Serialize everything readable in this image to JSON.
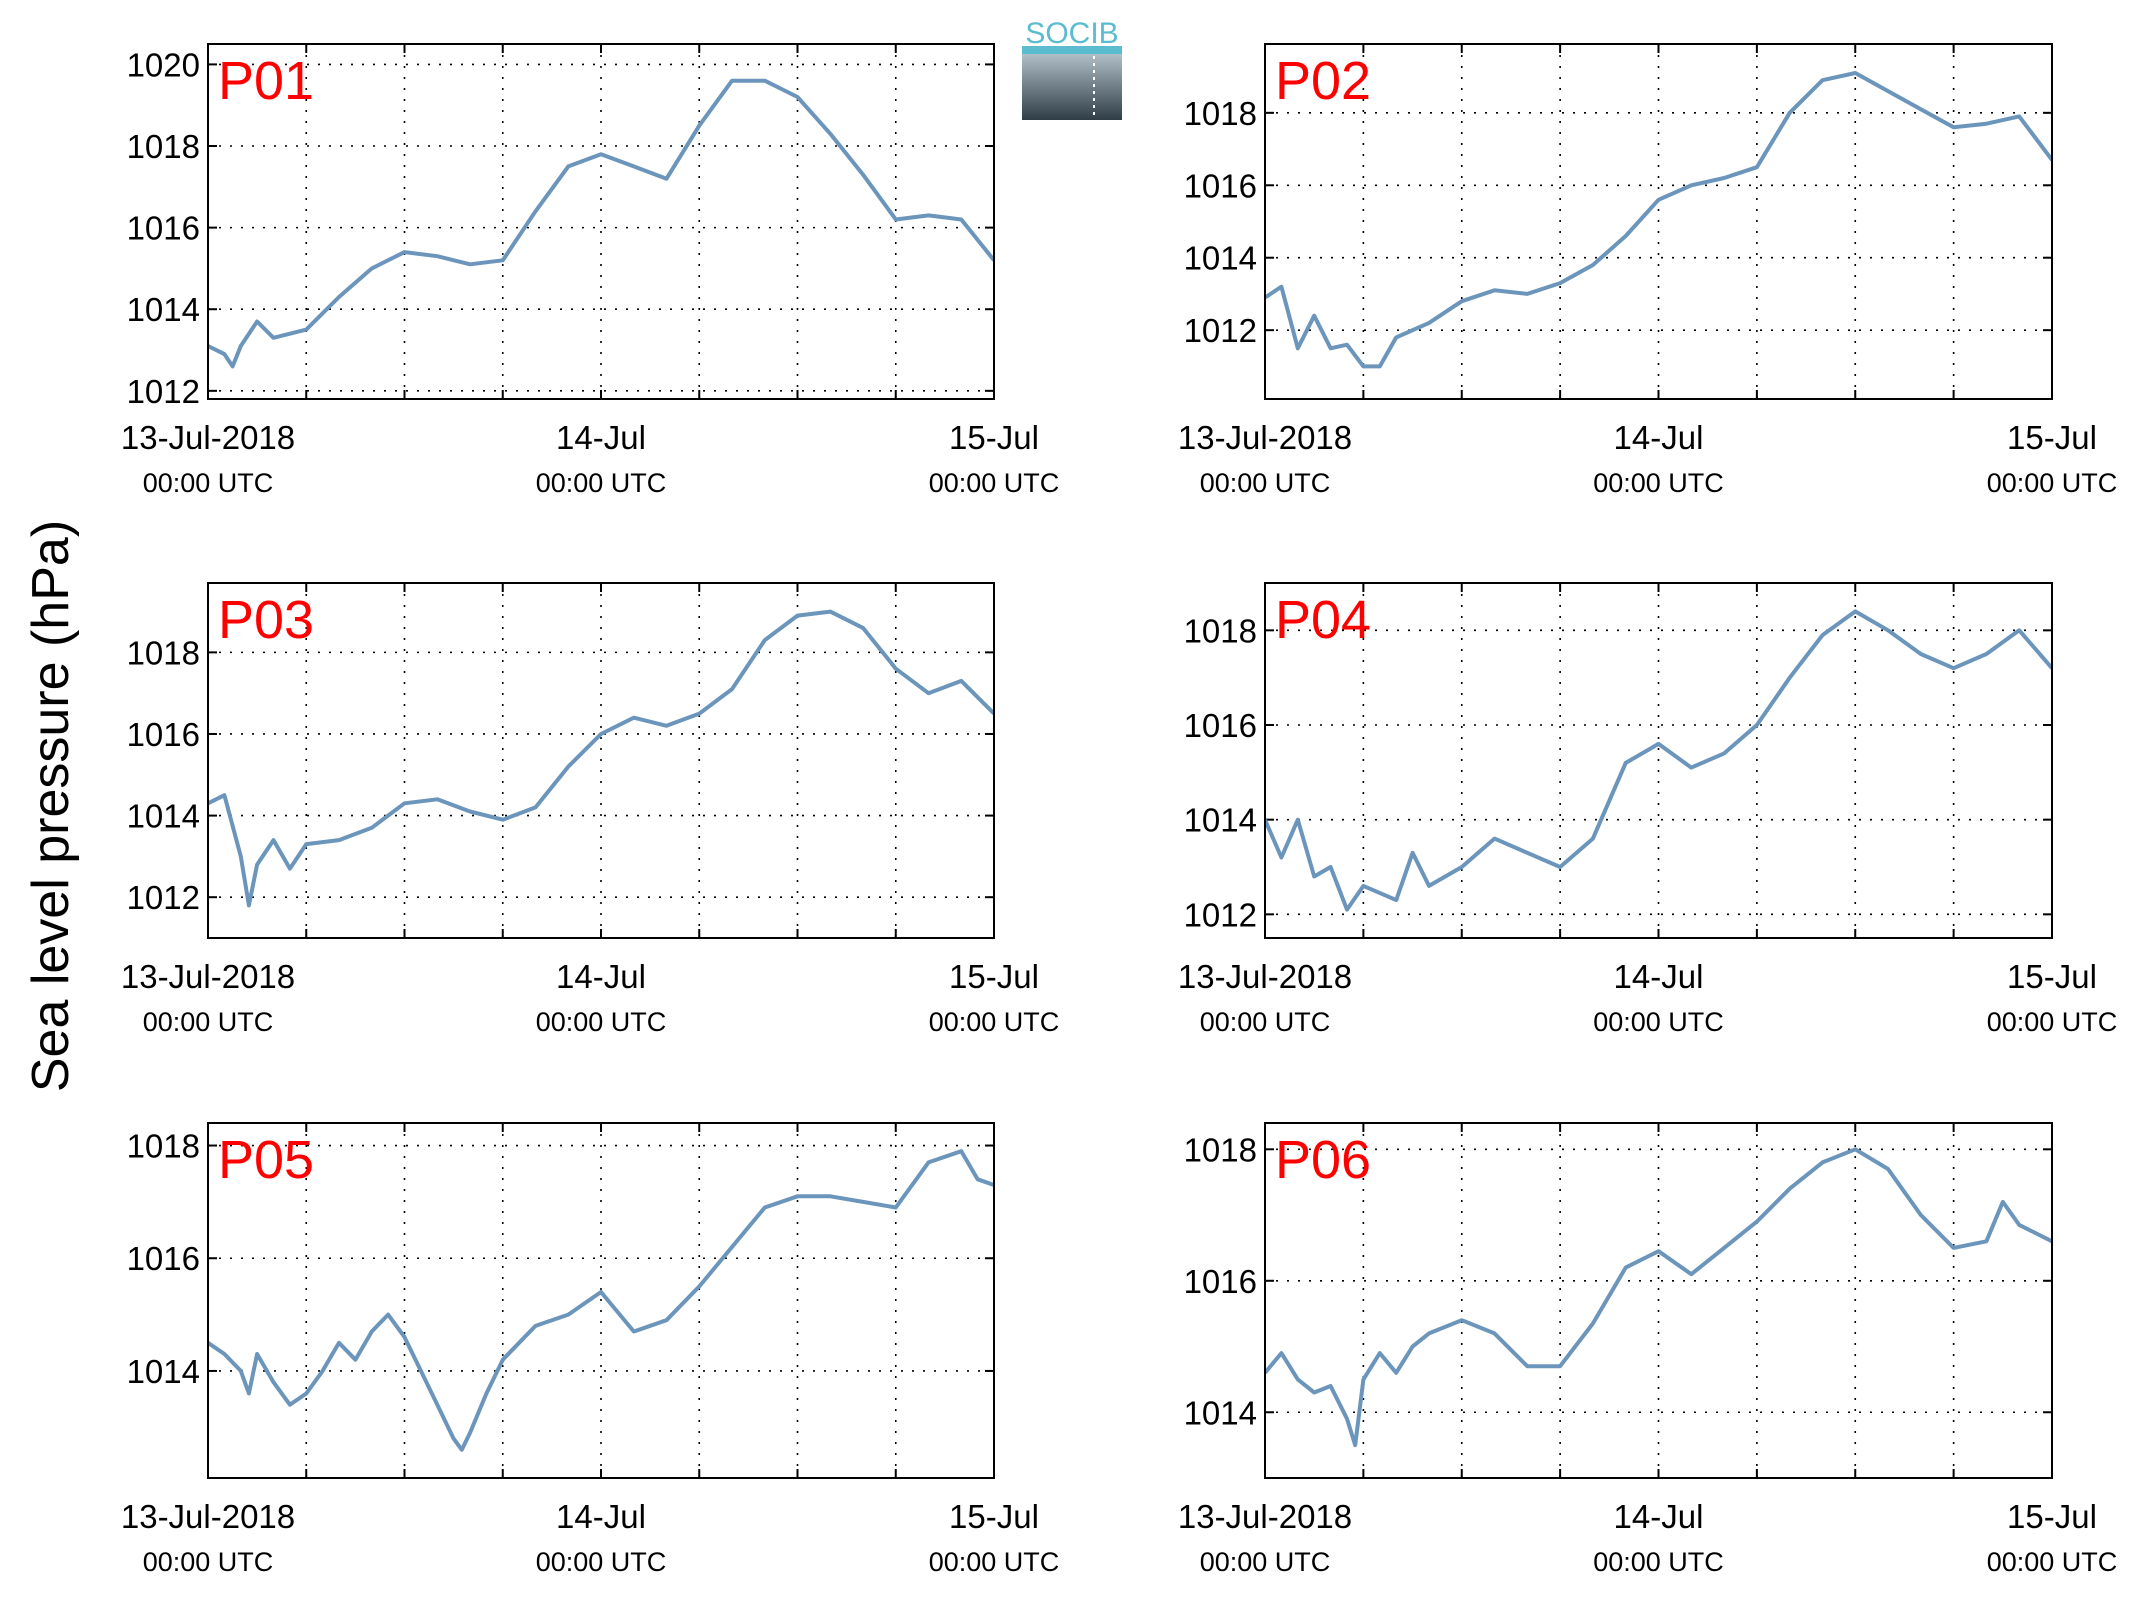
{
  "ylabel": "Sea level pressure (hPa)",
  "logo": "SOCIB",
  "chart_data": [
    {
      "type": "line",
      "title": "P01",
      "color": "#6b95bb",
      "grid": true,
      "x": [
        0,
        1,
        1.5,
        2,
        3,
        4,
        5,
        6,
        8,
        10,
        12,
        14,
        16,
        18,
        20,
        22,
        24,
        26,
        28,
        30,
        32,
        34,
        36,
        38,
        40,
        42,
        44,
        46,
        48
      ],
      "values": [
        1013.1,
        1012.9,
        1012.6,
        1013.1,
        1013.7,
        1013.3,
        1013.4,
        1013.5,
        1014.3,
        1015.0,
        1015.4,
        1015.3,
        1015.1,
        1015.2,
        1016.4,
        1017.5,
        1017.8,
        1017.5,
        1017.2,
        1018.5,
        1019.6,
        1019.6,
        1019.2,
        1018.3,
        1017.3,
        1016.2,
        1016.3,
        1016.2,
        1015.2
      ],
      "xlim": [
        0,
        48
      ],
      "xticks": [
        {
          "value": 0,
          "label": [
            "13-Jul-2018",
            "00:00 UTC"
          ]
        },
        {
          "value": 24,
          "label": [
            "14-Jul",
            "00:00 UTC"
          ]
        },
        {
          "value": 48,
          "label": [
            "15-Jul",
            "00:00 UTC"
          ]
        }
      ],
      "xminor": [
        6,
        12,
        18,
        30,
        36,
        42
      ],
      "ylim": [
        1011.8,
        1020.5
      ],
      "yticks": [
        1012,
        1014,
        1016,
        1018,
        1020
      ]
    },
    {
      "type": "line",
      "title": "P02",
      "color": "#6b95bb",
      "grid": true,
      "x": [
        0,
        1,
        2,
        3,
        4,
        5,
        6,
        7,
        8,
        10,
        12,
        14,
        16,
        18,
        20,
        22,
        24,
        26,
        28,
        30,
        32,
        34,
        36,
        38,
        40,
        42,
        44,
        46,
        48
      ],
      "values": [
        1012.9,
        1013.2,
        1011.5,
        1012.4,
        1011.5,
        1011.6,
        1011.0,
        1011.0,
        1011.8,
        1012.2,
        1012.8,
        1013.1,
        1013.0,
        1013.3,
        1013.8,
        1014.6,
        1015.6,
        1016.0,
        1016.2,
        1016.5,
        1018.0,
        1018.9,
        1019.1,
        1018.6,
        1018.1,
        1017.6,
        1017.7,
        1017.9,
        1016.7
      ],
      "xlim": [
        0,
        48
      ],
      "xticks": [
        {
          "value": 0,
          "label": [
            "13-Jul-2018",
            "00:00 UTC"
          ]
        },
        {
          "value": 24,
          "label": [
            "14-Jul",
            "00:00 UTC"
          ]
        },
        {
          "value": 48,
          "label": [
            "15-Jul",
            "00:00 UTC"
          ]
        }
      ],
      "xminor": [
        6,
        12,
        18,
        30,
        36,
        42
      ],
      "ylim": [
        1010.1,
        1019.9
      ],
      "yticks": [
        1012,
        1014,
        1016,
        1018
      ]
    },
    {
      "type": "line",
      "title": "P03",
      "color": "#6b95bb",
      "grid": true,
      "x": [
        0,
        1,
        2,
        2.5,
        3,
        4,
        5,
        6,
        8,
        10,
        12,
        14,
        16,
        18,
        20,
        22,
        24,
        26,
        28,
        30,
        32,
        34,
        36,
        38,
        40,
        42,
        44,
        46,
        48
      ],
      "values": [
        1014.3,
        1014.5,
        1013.0,
        1011.8,
        1012.8,
        1013.4,
        1012.7,
        1013.3,
        1013.4,
        1013.7,
        1014.3,
        1014.4,
        1014.1,
        1013.9,
        1014.2,
        1015.2,
        1016.0,
        1016.4,
        1016.2,
        1016.5,
        1017.1,
        1018.3,
        1018.9,
        1019.0,
        1018.6,
        1017.6,
        1017.0,
        1017.3,
        1016.5
      ],
      "xlim": [
        0,
        48
      ],
      "xticks": [
        {
          "value": 0,
          "label": [
            "13-Jul-2018",
            "00:00 UTC"
          ]
        },
        {
          "value": 24,
          "label": [
            "14-Jul",
            "00:00 UTC"
          ]
        },
        {
          "value": 48,
          "label": [
            "15-Jul",
            "00:00 UTC"
          ]
        }
      ],
      "xminor": [
        6,
        12,
        18,
        30,
        36,
        42
      ],
      "ylim": [
        1011.0,
        1019.7
      ],
      "yticks": [
        1012,
        1014,
        1016,
        1018
      ]
    },
    {
      "type": "line",
      "title": "P04",
      "color": "#6b95bb",
      "grid": true,
      "x": [
        0,
        1,
        2,
        3,
        4,
        5,
        6,
        8,
        9,
        10,
        12,
        14,
        16,
        18,
        20,
        22,
        24,
        26,
        28,
        30,
        32,
        34,
        36,
        38,
        40,
        42,
        44,
        46,
        48
      ],
      "values": [
        1014.0,
        1013.2,
        1014.0,
        1012.8,
        1013.0,
        1012.1,
        1012.6,
        1012.3,
        1013.3,
        1012.6,
        1013.0,
        1013.6,
        1013.3,
        1013.0,
        1013.6,
        1015.2,
        1015.6,
        1015.1,
        1015.4,
        1016.0,
        1017.0,
        1017.9,
        1018.4,
        1018.0,
        1017.5,
        1017.2,
        1017.5,
        1018.0,
        1017.2
      ],
      "xlim": [
        0,
        48
      ],
      "xticks": [
        {
          "value": 0,
          "label": [
            "13-Jul-2018",
            "00:00 UTC"
          ]
        },
        {
          "value": 24,
          "label": [
            "14-Jul",
            "00:00 UTC"
          ]
        },
        {
          "value": 48,
          "label": [
            "15-Jul",
            "00:00 UTC"
          ]
        }
      ],
      "xminor": [
        6,
        12,
        18,
        30,
        36,
        42
      ],
      "ylim": [
        1011.5,
        1019.0
      ],
      "yticks": [
        1012,
        1014,
        1016,
        1018
      ]
    },
    {
      "type": "line",
      "title": "P05",
      "color": "#6b95bb",
      "grid": true,
      "x": [
        0,
        1,
        2,
        2.5,
        3,
        4,
        5,
        6,
        7,
        8,
        9,
        10,
        11,
        12,
        13,
        14,
        15,
        15.5,
        16,
        17,
        18,
        19,
        20,
        22,
        24,
        26,
        28,
        30,
        32,
        34,
        36,
        38,
        40,
        42,
        44,
        46,
        47,
        48
      ],
      "values": [
        1014.5,
        1014.3,
        1014.0,
        1013.6,
        1014.3,
        1013.8,
        1013.4,
        1013.6,
        1014.0,
        1014.5,
        1014.2,
        1014.7,
        1015.0,
        1014.6,
        1014.0,
        1013.4,
        1012.8,
        1012.6,
        1012.9,
        1013.6,
        1014.2,
        1014.5,
        1014.8,
        1015.0,
        1015.4,
        1014.7,
        1014.9,
        1015.5,
        1016.2,
        1016.9,
        1017.1,
        1017.1,
        1017.0,
        1016.9,
        1017.7,
        1017.9,
        1017.4,
        1017.3
      ],
      "xlim": [
        0,
        48
      ],
      "xticks": [
        {
          "value": 0,
          "label": [
            "13-Jul-2018",
            "00:00 UTC"
          ]
        },
        {
          "value": 24,
          "label": [
            "14-Jul",
            "00:00 UTC"
          ]
        },
        {
          "value": 48,
          "label": [
            "15-Jul",
            "00:00 UTC"
          ]
        }
      ],
      "xminor": [
        6,
        12,
        18,
        30,
        36,
        42
      ],
      "ylim": [
        1012.1,
        1018.4
      ],
      "yticks": [
        1014,
        1016,
        1018
      ]
    },
    {
      "type": "line",
      "title": "P06",
      "color": "#6b95bb",
      "grid": true,
      "x": [
        0,
        1,
        2,
        3,
        4,
        5,
        5.5,
        6,
        7,
        8,
        9,
        10,
        12,
        14,
        16,
        18,
        20,
        22,
        24,
        26,
        28,
        30,
        32,
        34,
        36,
        38,
        40,
        42,
        44,
        45,
        46,
        48
      ],
      "values": [
        1014.6,
        1014.9,
        1014.5,
        1014.3,
        1014.4,
        1013.9,
        1013.5,
        1014.5,
        1014.9,
        1014.6,
        1015.0,
        1015.2,
        1015.4,
        1015.2,
        1014.7,
        1014.7,
        1015.35,
        1016.2,
        1016.45,
        1016.1,
        1016.5,
        1016.9,
        1017.4,
        1017.8,
        1018.0,
        1017.7,
        1017.0,
        1016.5,
        1016.6,
        1017.2,
        1016.85,
        1016.6
      ],
      "xlim": [
        0,
        48
      ],
      "xticks": [
        {
          "value": 0,
          "label": [
            "13-Jul-2018",
            "00:00 UTC"
          ]
        },
        {
          "value": 24,
          "label": [
            "14-Jul",
            "00:00 UTC"
          ]
        },
        {
          "value": 48,
          "label": [
            "15-Jul",
            "00:00 UTC"
          ]
        }
      ],
      "xminor": [
        6,
        12,
        18,
        30,
        36,
        42
      ],
      "ylim": [
        1013.0,
        1018.4
      ],
      "yticks": [
        1014,
        1016,
        1018
      ]
    }
  ]
}
